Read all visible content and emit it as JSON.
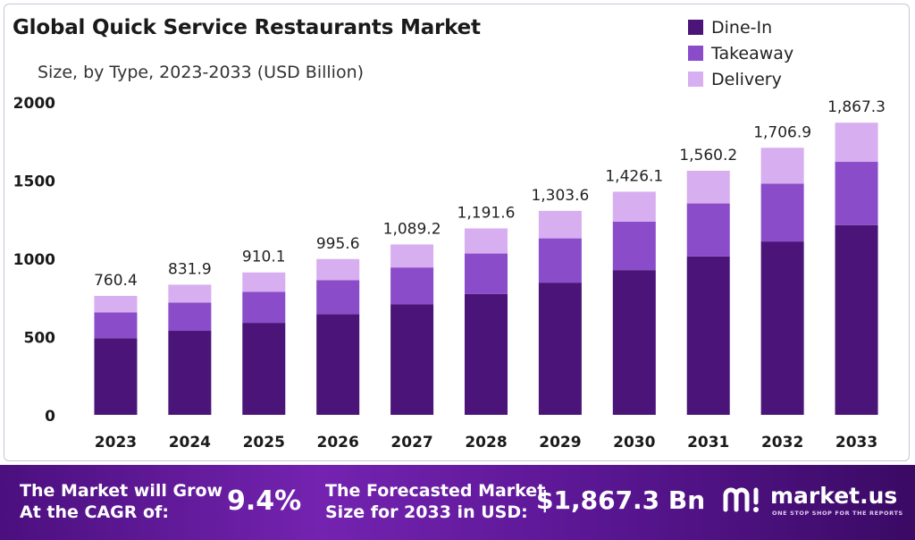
{
  "chart_data": {
    "type": "bar",
    "stacked": true,
    "title": "Global Quick Service Restaurants Market",
    "subtitle": "Size, by Type, 2023-2033 (USD Billion)",
    "categories": [
      "2023",
      "2024",
      "2025",
      "2026",
      "2027",
      "2028",
      "2029",
      "2030",
      "2031",
      "2032",
      "2033"
    ],
    "totals": [
      760.4,
      831.9,
      910.1,
      995.6,
      1089.2,
      1191.6,
      1303.6,
      1426.1,
      1560.2,
      1706.9,
      1867.3
    ],
    "total_labels": [
      "760.4",
      "831.9",
      "910.1",
      "995.6",
      "1,089.2",
      "1,191.6",
      "1,303.6",
      "1,426.1",
      "1,560.2",
      "1,706.9",
      "1,867.3"
    ],
    "series": [
      {
        "name": "Dine-In",
        "color": "#4a1478",
        "values": [
          490,
          537,
          588,
          644,
          706,
          772,
          845,
          925,
          1012,
          1108,
          1213
        ]
      },
      {
        "name": "Takeaway",
        "color": "#8b4cc9",
        "values": [
          165,
          181,
          198,
          216,
          236,
          259,
          283,
          310,
          339,
          370,
          404
        ]
      },
      {
        "name": "Delivery",
        "color": "#d7aef0",
        "values": [
          105.4,
          113.9,
          124.1,
          135.6,
          147.2,
          160.6,
          175.6,
          191.1,
          209.2,
          228.9,
          250.3
        ]
      }
    ],
    "ylim": [
      0,
      2000
    ],
    "yticks": [
      "0",
      "500",
      "1000",
      "1500",
      "2000"
    ],
    "ytick_values": [
      0,
      500,
      1000,
      1500,
      2000
    ],
    "grid": false,
    "legend_position": "top-right"
  },
  "footer": {
    "cagr_text_line1": "The Market will Grow",
    "cagr_text_line2": "At the CAGR of:",
    "cagr_value": "9.4%",
    "forecast_text_line1": "The Forecasted Market",
    "forecast_text_line2": "Size for 2033 in USD:",
    "forecast_value": "$1,867.3 Bn",
    "brand_name": "market.us",
    "brand_tagline": "ONE STOP SHOP FOR THE REPORTS",
    "brand_icon": "market-us-logo-icon"
  },
  "colors": {
    "footer_bg": "#5a1693",
    "label_text": "#1a1a1a"
  }
}
